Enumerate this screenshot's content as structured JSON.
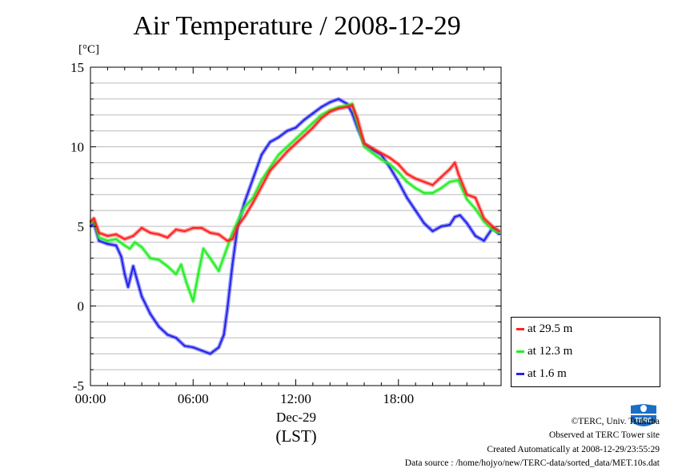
{
  "title": "Air Temperature / 2008-12-29",
  "unit_label": "[°C]",
  "x_date_label": "Dec-29",
  "x_timezone_label": "(LST)",
  "colors": {
    "red": "#ff2020",
    "green": "#22ee22",
    "blue": "#2222ee"
  },
  "legend": [
    {
      "label": "at 29.5 m",
      "color": "#ff2020"
    },
    {
      "label": "at 12.3 m",
      "color": "#22ee22"
    },
    {
      "label": "at 1.6 m",
      "color": "#2222ee"
    }
  ],
  "footer": {
    "copyright": "©TERC, Univ. Tsukuba",
    "observed": "Observed at TERC Tower site",
    "created": "Created Automatically at 2008-12-29/23:55:29",
    "source": "Data source : /home/hojyo/new/TERC-data/sorted_data/MET.10s.dat"
  },
  "logo": {
    "icon": "terc-logo-icon",
    "text": "TERC"
  },
  "chart_data": {
    "type": "line",
    "title": "Air Temperature / 2008-12-29",
    "ylabel": "[°C]",
    "xlabel": "Dec-29 (LST)",
    "ylim": [
      -5,
      15
    ],
    "xlim": [
      0,
      24
    ],
    "grid": true,
    "legend_position": "right",
    "y_ticks": [
      "15",
      "10",
      "5",
      "0",
      "-5"
    ],
    "y_tick_values": [
      15,
      10,
      5,
      0,
      -5
    ],
    "x_ticks": [
      "00:00",
      "06:00",
      "12:00",
      "18:00"
    ],
    "x_tick_values": [
      0,
      6,
      12,
      18
    ],
    "series": [
      {
        "name": "at 29.5 m",
        "color": "#ff2020",
        "x": [
          0,
          0.2,
          0.5,
          1.0,
          1.5,
          2.0,
          2.5,
          3.0,
          3.5,
          4.0,
          4.5,
          5.0,
          5.5,
          6.0,
          6.5,
          7.0,
          7.5,
          8.0,
          8.3,
          8.6,
          9.0,
          9.5,
          10.0,
          10.5,
          11.0,
          11.5,
          12.0,
          12.5,
          13.0,
          13.5,
          14.0,
          14.5,
          15.0,
          15.3,
          15.6,
          16.0,
          16.5,
          17.0,
          17.5,
          18.0,
          18.5,
          19.0,
          19.5,
          20.0,
          20.5,
          21.0,
          21.3,
          21.5,
          22.0,
          22.5,
          23.0,
          23.5,
          23.9
        ],
        "values": [
          5.3,
          5.5,
          4.6,
          4.4,
          4.5,
          4.2,
          4.4,
          4.9,
          4.6,
          4.5,
          4.3,
          4.8,
          4.7,
          4.9,
          4.9,
          4.6,
          4.5,
          4.1,
          4.2,
          5.0,
          5.6,
          6.5,
          7.5,
          8.5,
          9.1,
          9.7,
          10.2,
          10.7,
          11.2,
          11.8,
          12.2,
          12.4,
          12.5,
          12.6,
          11.8,
          10.2,
          9.9,
          9.6,
          9.3,
          8.9,
          8.3,
          8.0,
          7.8,
          7.6,
          8.1,
          8.6,
          9.0,
          8.3,
          7.0,
          6.8,
          5.5,
          5.0,
          4.7
        ]
      },
      {
        "name": "at 12.3 m",
        "color": "#22ee22",
        "x": [
          0,
          0.2,
          0.5,
          1.0,
          1.5,
          2.0,
          2.3,
          2.6,
          3.0,
          3.5,
          4.0,
          4.5,
          5.0,
          5.3,
          5.6,
          6.0,
          6.3,
          6.6,
          7.0,
          7.5,
          8.0,
          8.3,
          8.6,
          9.0,
          9.5,
          10.0,
          10.5,
          11.0,
          11.5,
          12.0,
          12.5,
          13.0,
          13.5,
          14.0,
          14.5,
          15.0,
          15.3,
          15.6,
          16.0,
          16.5,
          17.0,
          17.5,
          18.0,
          18.5,
          19.0,
          19.5,
          20.0,
          20.5,
          21.0,
          21.5,
          22.0,
          22.5,
          23.0,
          23.5,
          23.9
        ],
        "values": [
          5.2,
          5.4,
          4.3,
          4.1,
          4.2,
          3.8,
          3.6,
          4.0,
          3.7,
          3.0,
          2.9,
          2.5,
          2.0,
          2.6,
          1.5,
          0.3,
          2.0,
          3.6,
          3.0,
          2.2,
          3.7,
          4.6,
          5.3,
          6.2,
          6.8,
          7.9,
          8.7,
          9.5,
          10.0,
          10.5,
          11.0,
          11.5,
          12.0,
          12.3,
          12.5,
          12.6,
          12.7,
          11.5,
          10.0,
          9.6,
          9.2,
          8.9,
          8.4,
          7.8,
          7.4,
          7.1,
          7.1,
          7.4,
          7.8,
          7.9,
          6.7,
          6.1,
          5.3,
          4.8,
          4.6
        ]
      },
      {
        "name": "at 1.6 m",
        "color": "#2222ee",
        "x": [
          0,
          0.2,
          0.5,
          1.0,
          1.5,
          1.8,
          2.0,
          2.2,
          2.5,
          3.0,
          3.5,
          4.0,
          4.5,
          5.0,
          5.5,
          6.0,
          6.5,
          7.0,
          7.5,
          7.8,
          8.0,
          8.3,
          8.6,
          9.0,
          9.5,
          10.0,
          10.5,
          11.0,
          11.5,
          12.0,
          12.5,
          13.0,
          13.5,
          14.0,
          14.5,
          15.0,
          15.3,
          15.6,
          16.0,
          16.5,
          17.0,
          17.5,
          18.0,
          18.5,
          19.0,
          19.5,
          20.0,
          20.5,
          21.0,
          21.3,
          21.6,
          22.0,
          22.5,
          23.0,
          23.5,
          23.9
        ],
        "values": [
          5.0,
          5.2,
          4.1,
          3.9,
          3.8,
          3.1,
          2.0,
          1.2,
          2.5,
          0.6,
          -0.5,
          -1.3,
          -1.8,
          -2.0,
          -2.5,
          -2.6,
          -2.8,
          -3.0,
          -2.6,
          -1.8,
          -0.2,
          2.6,
          5.0,
          6.5,
          8.0,
          9.5,
          10.3,
          10.6,
          11.0,
          11.2,
          11.7,
          12.1,
          12.5,
          12.8,
          13.0,
          12.7,
          12.1,
          11.2,
          10.2,
          9.8,
          9.5,
          8.7,
          7.8,
          6.8,
          6.0,
          5.2,
          4.7,
          5.0,
          5.1,
          5.6,
          5.7,
          5.2,
          4.4,
          4.1,
          4.9,
          4.5
        ]
      }
    ]
  }
}
